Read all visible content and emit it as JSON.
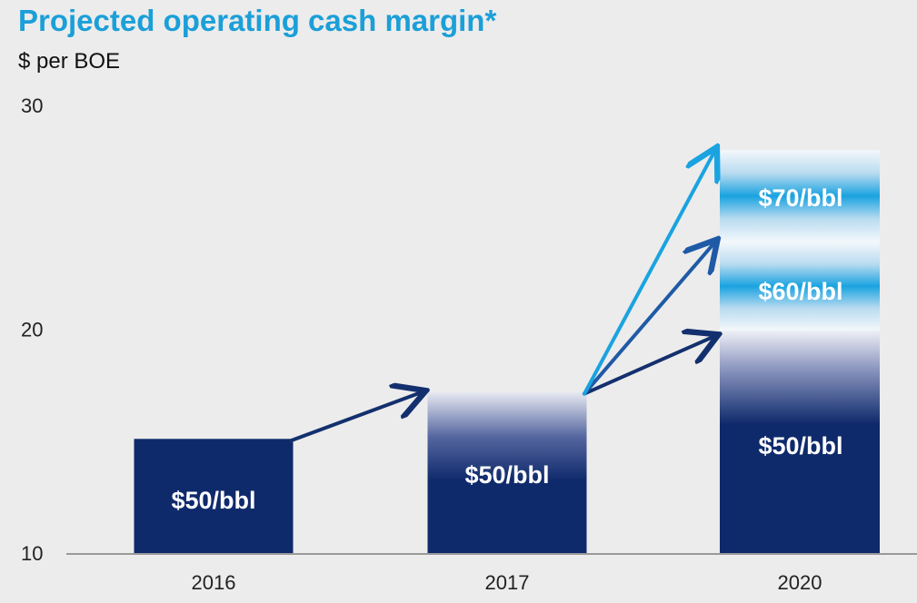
{
  "title": "Projected operating cash margin*",
  "subtitle": "$ per BOE",
  "colors": {
    "title": "#1b9fd8",
    "bar_dark": "#0f2a6b",
    "band_light": "#c7e3f4",
    "band_mid": "#1aa3e0",
    "arrow_dark": "#13306e",
    "arrow_mid": "#1f5aa6",
    "arrow_light": "#1aa3e0",
    "background": "#ececec"
  },
  "chart_data": {
    "type": "bar",
    "title": "Projected operating cash margin*",
    "ylabel": "$ per BOE",
    "xlabel": "",
    "ylim": [
      10,
      30
    ],
    "yticks": [
      10,
      20,
      30
    ],
    "categories": [
      "2016",
      "2017",
      "2020"
    ],
    "bars": [
      {
        "category": "2016",
        "value": 15.1,
        "label": "$50/bbl"
      },
      {
        "category": "2017",
        "value": 17.2,
        "label": "$50/bbl"
      },
      {
        "category": "2020",
        "value": 19.7,
        "label": "$50/bbl"
      },
      {
        "category": "2020",
        "value": 23.9,
        "label": "$60/bbl"
      },
      {
        "category": "2020",
        "value": 28.0,
        "label": "$70/bbl"
      }
    ],
    "arrows": [
      {
        "from": [
          "2016",
          15.1
        ],
        "to": [
          "2017",
          17.2
        ]
      },
      {
        "from": [
          "2017",
          17.2
        ],
        "to": [
          "2020",
          19.7
        ]
      },
      {
        "from": [
          "2017",
          17.2
        ],
        "to": [
          "2020",
          23.9
        ]
      },
      {
        "from": [
          "2017",
          17.2
        ],
        "to": [
          "2020",
          28.0
        ]
      }
    ],
    "grid": false,
    "legend": "none"
  }
}
